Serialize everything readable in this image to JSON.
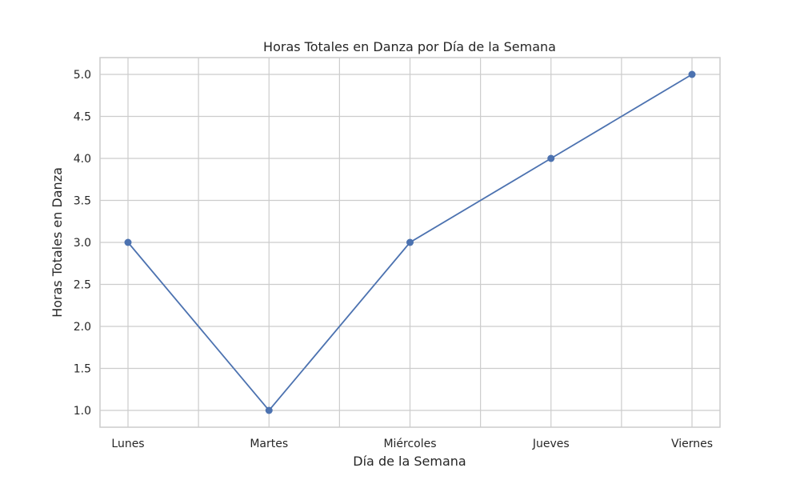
{
  "chart_data": {
    "type": "line",
    "title": "Horas Totales en Danza por Día de la Semana",
    "xlabel": "Día de la Semana",
    "ylabel": "Horas Totales en Danza",
    "categories": [
      "Lunes",
      "Martes",
      "Miércoles",
      "Jueves",
      "Viernes"
    ],
    "series": [
      {
        "values": [
          3.0,
          1.0,
          3.0,
          4.0,
          5.0
        ]
      }
    ],
    "ylim": [
      0.8,
      5.2
    ],
    "yticks": [
      "1.0",
      "1.5",
      "2.0",
      "2.5",
      "3.0",
      "3.5",
      "4.0",
      "4.5",
      "5.0"
    ],
    "grid": true,
    "line_color": "#4c72b0",
    "marker": "circle"
  }
}
